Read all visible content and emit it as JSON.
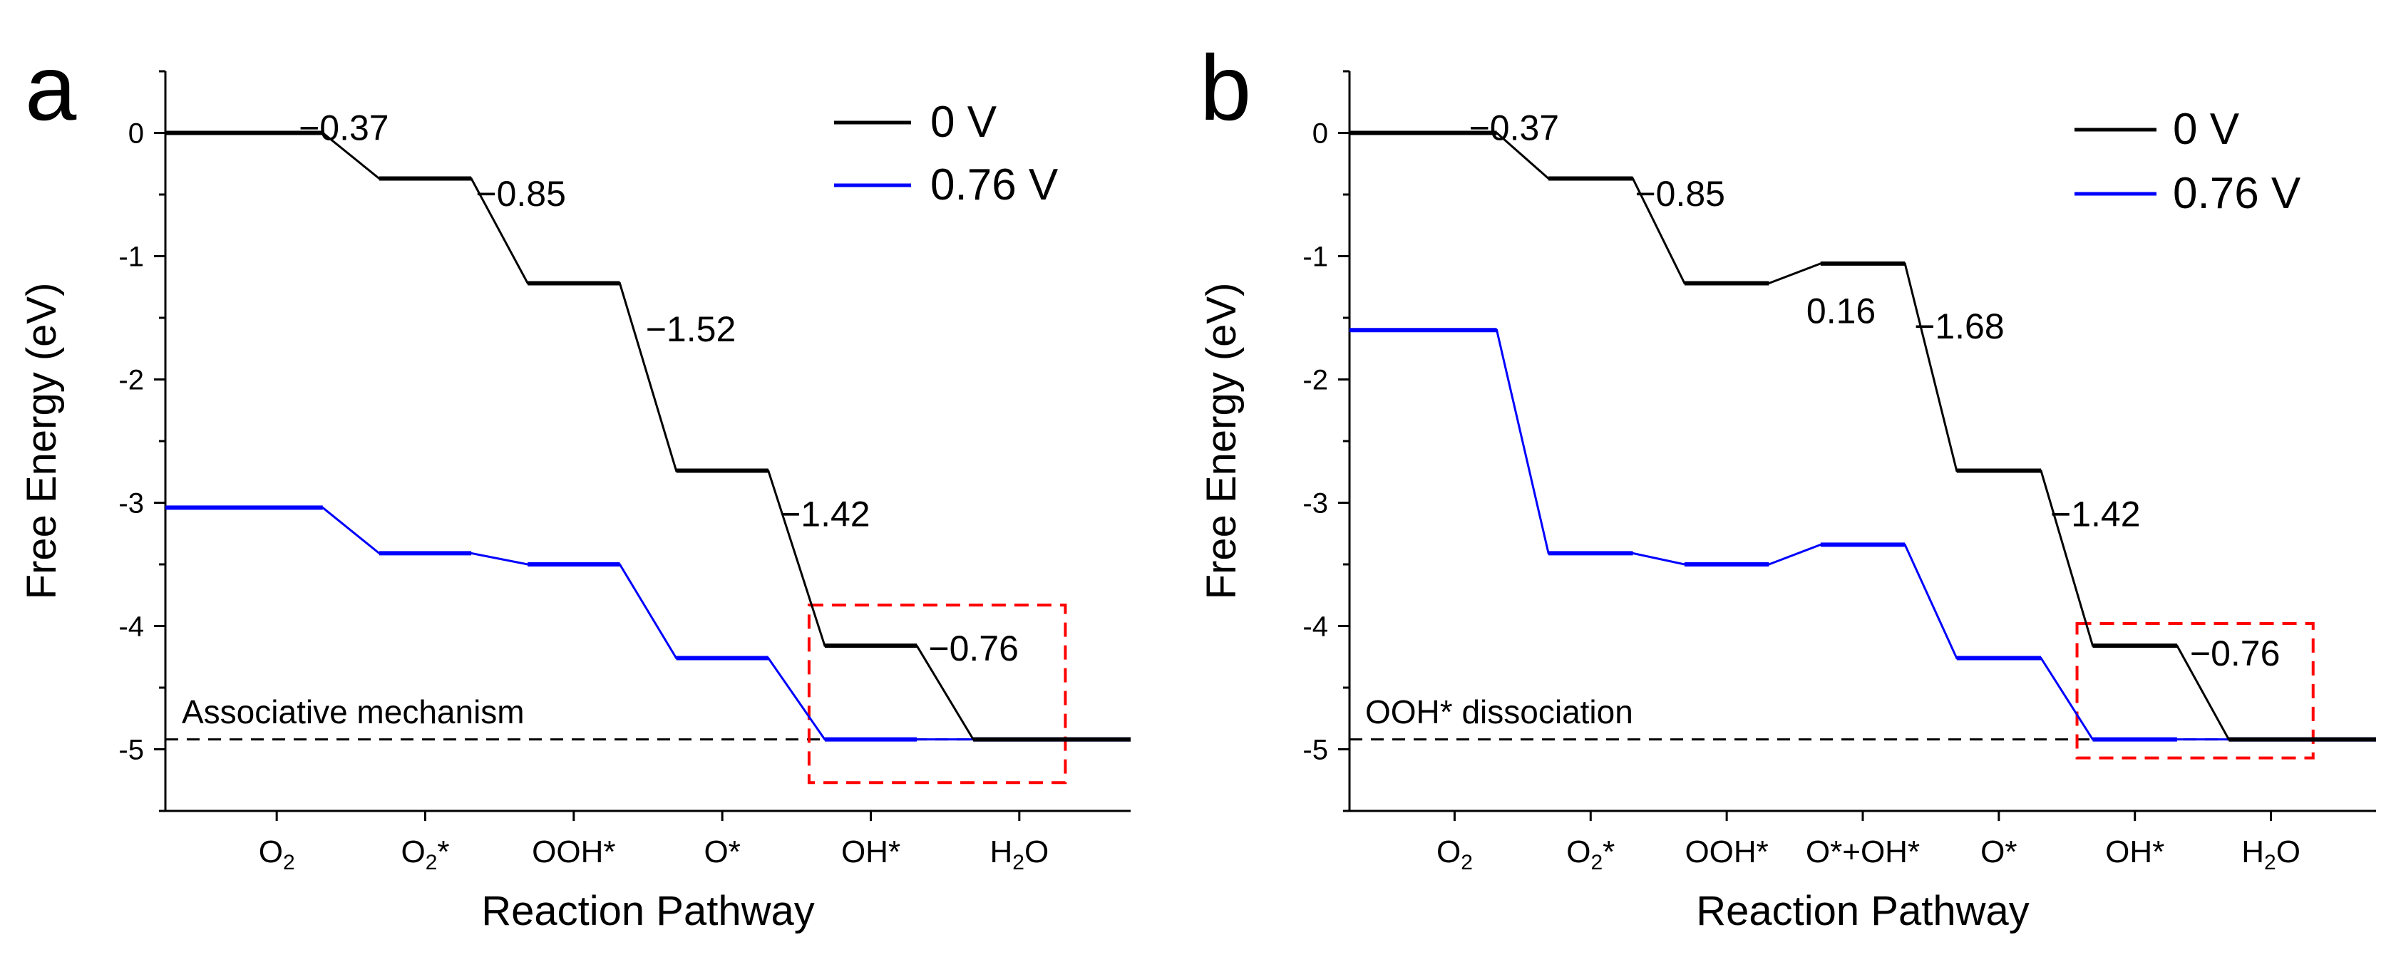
{
  "chart_data": [
    {
      "type": "line",
      "panel": "a",
      "title": "",
      "xlabel": "Reaction Pathway",
      "ylabel": "Free Energy (eV)",
      "ylim": [
        -5.5,
        0.5
      ],
      "yticks": [
        "0",
        "-1",
        "-2",
        "-3",
        "-4",
        "-5"
      ],
      "categories": [
        "O2",
        "O2*",
        "OOH*",
        "O*",
        "OH*",
        "H2O"
      ],
      "category_labels": [
        {
          "base": "O",
          "sub": "2",
          "sup": ""
        },
        {
          "base": "O",
          "sub": "2",
          "sup": "*"
        },
        {
          "base": "OOH*",
          "sub": "",
          "sup": ""
        },
        {
          "base": "O*",
          "sub": "",
          "sup": ""
        },
        {
          "base": "OH*",
          "sub": "",
          "sup": ""
        },
        {
          "base": "H",
          "sub": "2",
          "sup": "O"
        }
      ],
      "series": [
        {
          "name": "0 V",
          "color": "#000000",
          "values": [
            0,
            -0.37,
            -1.22,
            -2.74,
            -4.16,
            -4.92
          ]
        },
        {
          "name": "0.76 V",
          "color": "#0000ff",
          "values": [
            -3.04,
            -3.41,
            -3.5,
            -4.26,
            -4.92,
            -4.92
          ]
        }
      ],
      "step_labels": [
        {
          "text": "−0.37",
          "step": 0
        },
        {
          "text": "−0.85",
          "step": 1
        },
        {
          "text": "−1.52",
          "step": 2
        },
        {
          "text": "−1.42",
          "step": 3
        },
        {
          "text": "−0.76",
          "step": 4
        }
      ],
      "reference_line": -4.92,
      "annotation": "Associative mechanism",
      "highlight": {
        "from_category": 4,
        "to_category": 5,
        "y_top": -3.83,
        "y_bottom": -5.27
      },
      "legend": {
        "position": "top-right",
        "entries": [
          "0 V",
          "0.76 V"
        ]
      }
    },
    {
      "type": "line",
      "panel": "b",
      "title": "",
      "xlabel": "Reaction Pathway",
      "ylabel": "Free Energy (eV)",
      "ylim": [
        -5.5,
        0.5
      ],
      "yticks": [
        "0",
        "-1",
        "-2",
        "-3",
        "-4",
        "-5"
      ],
      "categories": [
        "O2",
        "O2*",
        "OOH*",
        "O*+OH*",
        "O*",
        "OH*",
        "H2O"
      ],
      "category_labels": [
        {
          "base": "O",
          "sub": "2",
          "sup": ""
        },
        {
          "base": "O",
          "sub": "2",
          "sup": "*"
        },
        {
          "base": "OOH*",
          "sub": "",
          "sup": ""
        },
        {
          "base": "O*+OH*",
          "sub": "",
          "sup": ""
        },
        {
          "base": "O*",
          "sub": "",
          "sup": ""
        },
        {
          "base": "OH*",
          "sub": "",
          "sup": ""
        },
        {
          "base": "H",
          "sub": "2",
          "sup": "O"
        }
      ],
      "series": [
        {
          "name": "0 V",
          "color": "#000000",
          "values": [
            0,
            -0.37,
            -1.22,
            -1.06,
            -2.74,
            -4.16,
            -4.92
          ]
        },
        {
          "name": "0.76 V",
          "color": "#0000ff",
          "values": [
            -1.6,
            -3.41,
            -3.5,
            -3.34,
            -4.26,
            -4.92,
            -4.92
          ]
        }
      ],
      "step_labels": [
        {
          "text": "−0.37",
          "step": 0
        },
        {
          "text": "−0.85",
          "step": 1
        },
        {
          "text": "0.16",
          "step": 2
        },
        {
          "text": "−1.68",
          "step": 3
        },
        {
          "text": "−1.42",
          "step": 4
        },
        {
          "text": "−0.76",
          "step": 5
        }
      ],
      "reference_line": -4.92,
      "annotation": "OOH* dissociation",
      "highlight": {
        "from_category": 5,
        "to_category": 6,
        "y_top": -3.98,
        "y_bottom": -5.07
      },
      "legend": {
        "position": "top-right",
        "entries": [
          "0 V",
          "0.76 V"
        ]
      }
    }
  ]
}
